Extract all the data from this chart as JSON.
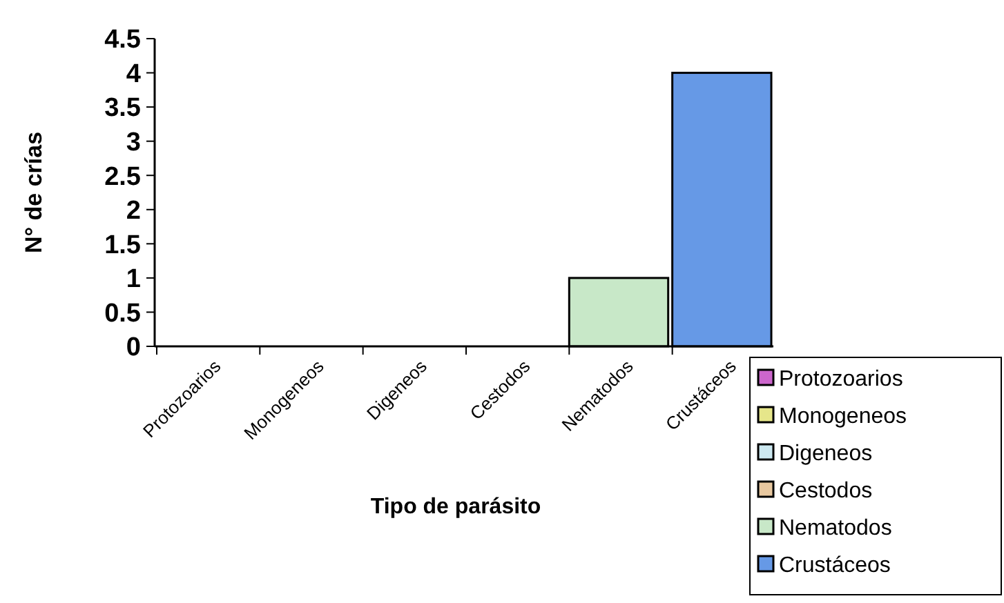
{
  "chart_data": {
    "type": "bar",
    "xlabel": "Tipo de parásito",
    "ylabel": "N° de crías",
    "categories": [
      "Protozoarios",
      "Monogeneos",
      "Digeneos",
      "Cestodos",
      "Nematodos",
      "Crustáceos"
    ],
    "series": [
      {
        "name": "Protozoarios",
        "color": "#cc66cc",
        "values": [
          0,
          null,
          null,
          null,
          null,
          null
        ]
      },
      {
        "name": "Monogeneos",
        "color": "#e6e68a",
        "values": [
          null,
          0,
          null,
          null,
          null,
          null
        ]
      },
      {
        "name": "Digeneos",
        "color": "#cce8f0",
        "values": [
          null,
          null,
          0,
          null,
          null,
          null
        ]
      },
      {
        "name": "Cestodos",
        "color": "#e8c8a0",
        "values": [
          null,
          null,
          null,
          0,
          null,
          null
        ]
      },
      {
        "name": "Nematodos",
        "color": "#c8e8c8",
        "values": [
          null,
          null,
          null,
          null,
          1,
          null
        ]
      },
      {
        "name": "Crustáceos",
        "color": "#6699e6",
        "values": [
          null,
          null,
          null,
          null,
          null,
          4
        ]
      }
    ],
    "ylim": [
      0,
      4.5
    ],
    "yticks": [
      0,
      0.5,
      1,
      1.5,
      2,
      2.5,
      3,
      3.5,
      4,
      4.5
    ],
    "grid": false,
    "legend": "bottom right"
  }
}
